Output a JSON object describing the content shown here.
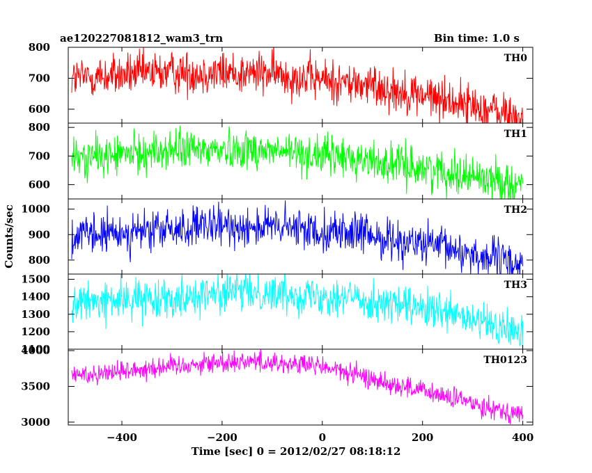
{
  "header": {
    "title": "ae120227081812_wam3_trn",
    "bin_time": "Bin time: 1.0 s"
  },
  "chart_data": {
    "type": "line",
    "xlabel": "Time [sec] 0 = 2012/02/27 08:18:12",
    "ylabel": "Counts/sec",
    "xlim": [
      -507,
      420
    ],
    "xticks": [
      -400,
      -200,
      0,
      200,
      400
    ],
    "xtick_labels": [
      "−400",
      "−200",
      "0",
      "200",
      "400"
    ],
    "x_start": -500,
    "x_end": 400,
    "grid": false,
    "legend": "none",
    "panels": [
      {
        "name": "TH0",
        "color": "#ff0000",
        "ylim": [
          555,
          800
        ],
        "yticks": [
          600,
          700,
          800
        ],
        "trend": [
          [
            -500,
            700
          ],
          [
            -300,
            720
          ],
          [
            -100,
            715
          ],
          [
            100,
            675
          ],
          [
            250,
            630
          ],
          [
            400,
            570
          ]
        ],
        "noise": 35
      },
      {
        "name": "TH1",
        "color": "#00ff00",
        "ylim": [
          550,
          815
        ],
        "yticks": [
          600,
          700,
          800
        ],
        "trend": [
          [
            -500,
            690
          ],
          [
            -300,
            720
          ],
          [
            -150,
            725
          ],
          [
            50,
            695
          ],
          [
            250,
            645
          ],
          [
            400,
            600
          ]
        ],
        "noise": 35
      },
      {
        "name": "TH2",
        "color": "#0000ff",
        "ylim": [
          745,
          1040
        ],
        "yticks": [
          800,
          900,
          1000
        ],
        "trend": [
          [
            -500,
            890
          ],
          [
            -300,
            920
          ],
          [
            -150,
            935
          ],
          [
            50,
            910
          ],
          [
            250,
            845
          ],
          [
            400,
            780
          ]
        ],
        "noise": 40
      },
      {
        "name": "TH3",
        "color": "#00ffff",
        "ylim": [
          1100,
          1530
        ],
        "yticks": [
          1100,
          1200,
          1300,
          1400,
          1500
        ],
        "trend": [
          [
            -500,
            1360
          ],
          [
            -300,
            1400
          ],
          [
            -150,
            1430
          ],
          [
            50,
            1400
          ],
          [
            250,
            1300
          ],
          [
            400,
            1190
          ]
        ],
        "noise": 55
      },
      {
        "name": "TH0123",
        "color": "#ff00ff",
        "ylim": [
          2960,
          4020
        ],
        "yticks": [
          3000,
          3500,
          4000
        ],
        "trend": [
          [
            -500,
            3650
          ],
          [
            -300,
            3790
          ],
          [
            -150,
            3860
          ],
          [
            0,
            3780
          ],
          [
            100,
            3600
          ],
          [
            250,
            3350
          ],
          [
            400,
            3100
          ]
        ],
        "noise": 75
      }
    ]
  }
}
